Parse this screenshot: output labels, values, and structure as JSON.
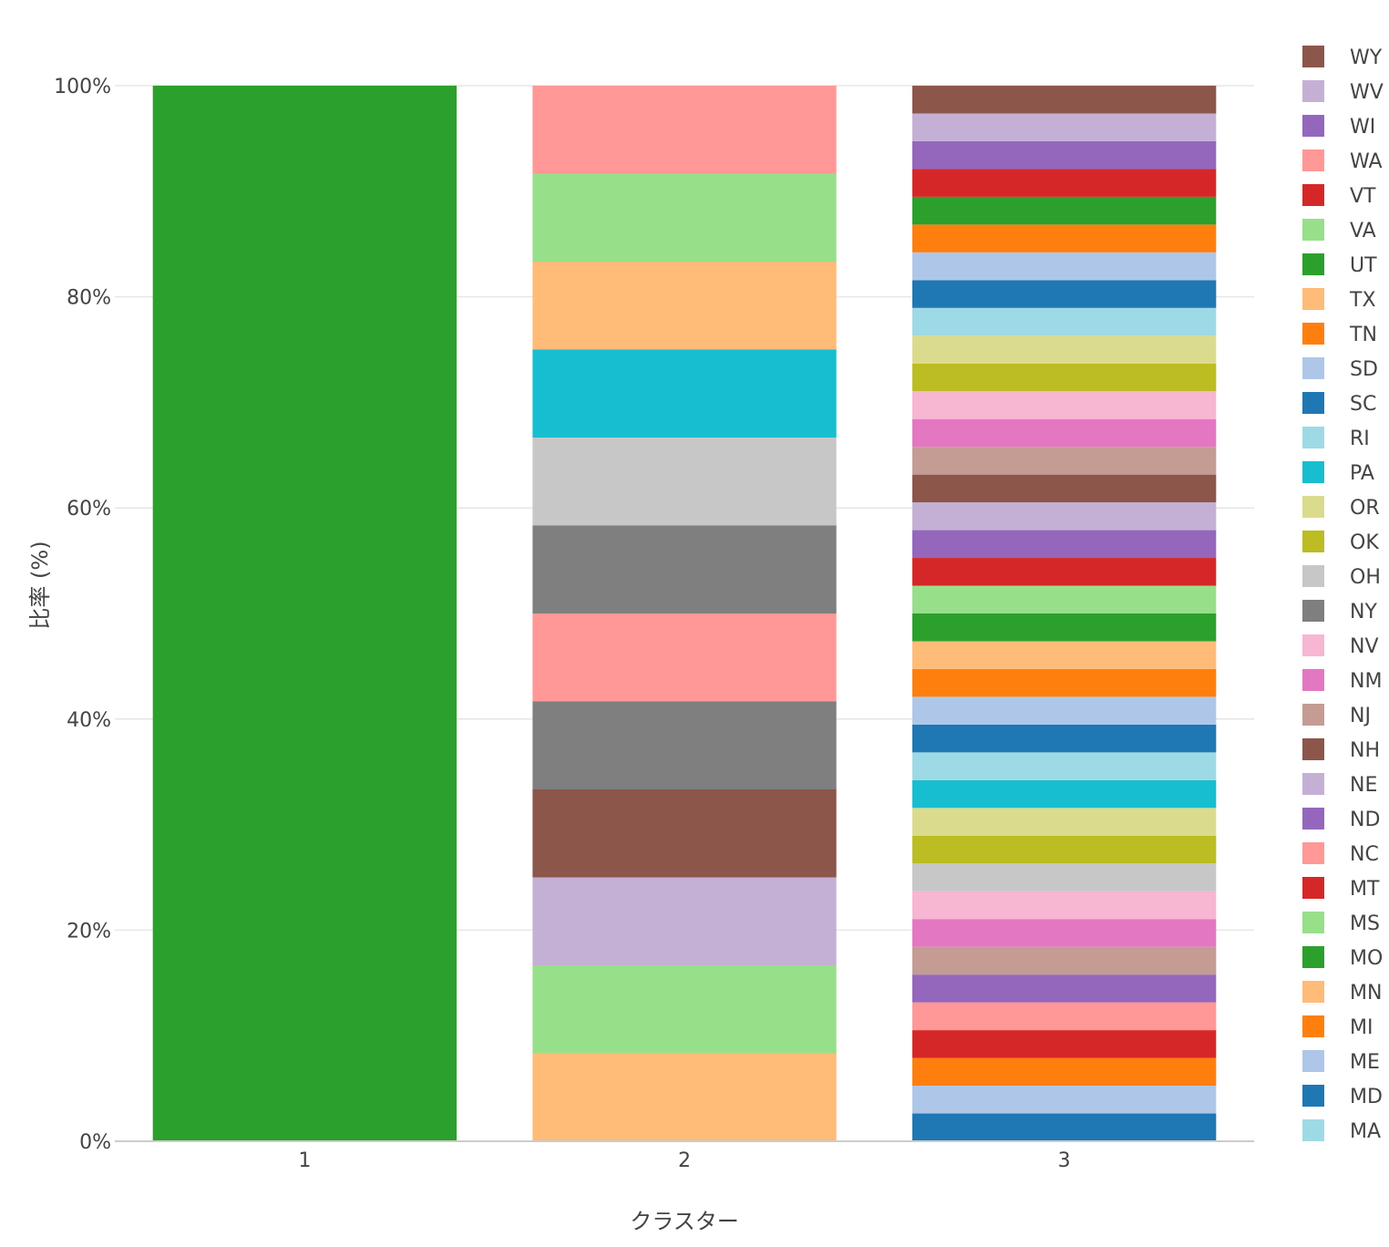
{
  "chart_data": {
    "type": "bar",
    "stacked": true,
    "title": "",
    "xlabel": "クラスター",
    "ylabel": "比率 (%)",
    "categories": [
      "1",
      "2",
      "3"
    ],
    "ylim": [
      0,
      100
    ],
    "y_ticks": [
      "0%",
      "20%",
      "40%",
      "60%",
      "80%",
      "100%"
    ],
    "grid": true,
    "legend_position": "right",
    "state_colors": {
      "MA": "#9edae5",
      "MD": "#1f77b4",
      "ME": "#aec7e8",
      "MI": "#ff7f0e",
      "MN": "#ffbb78",
      "MO": "#2ca02c",
      "MS": "#98df8a",
      "MT": "#d62728",
      "NC": "#ff9896",
      "ND": "#9467bd",
      "NE": "#c5b0d5",
      "NH": "#8c564b",
      "NJ": "#c49c94",
      "NM": "#e377c2",
      "NV": "#f7b6d2",
      "NY": "#7f7f7f",
      "OH": "#c7c7c7",
      "OK": "#bcbd22",
      "OR": "#dbdb8d",
      "PA": "#17becf",
      "RI": "#9edae5",
      "SC": "#1f77b4",
      "SD": "#aec7e8",
      "TN": "#ff7f0e",
      "TX": "#ffbb78",
      "UT": "#2ca02c",
      "VA": "#98df8a",
      "VT": "#d62728",
      "WA": "#ff9896",
      "WI": "#9467bd",
      "WV": "#c5b0d5",
      "WY": "#8c564b"
    },
    "legend": [
      "WY",
      "WV",
      "WI",
      "WA",
      "VT",
      "VA",
      "UT",
      "TX",
      "TN",
      "SD",
      "SC",
      "RI",
      "PA",
      "OR",
      "OK",
      "OH",
      "NY",
      "NV",
      "NM",
      "NJ",
      "NH",
      "NE",
      "ND",
      "NC",
      "MT",
      "MS",
      "MO",
      "MN",
      "MI",
      "ME",
      "MD",
      "MA"
    ],
    "stacks": [
      {
        "category": "1",
        "segments": [
          {
            "state": "MO",
            "value": 100
          }
        ]
      },
      {
        "category": "2",
        "segments": [
          {
            "state": "MN",
            "value": 8.33
          },
          {
            "state": "MS",
            "value": 8.33
          },
          {
            "state": "NE",
            "value": 8.33
          },
          {
            "state": "NH",
            "value": 8.33
          },
          {
            "state": "NY",
            "value": 8.33
          },
          {
            "state": "NC",
            "value": 8.33
          },
          {
            "state": "NY",
            "value": 8.33
          },
          {
            "state": "OH",
            "value": 8.33
          },
          {
            "state": "PA",
            "value": 8.33
          },
          {
            "state": "TX",
            "value": 8.33
          },
          {
            "state": "VA",
            "value": 8.33
          },
          {
            "state": "WA",
            "value": 8.33
          }
        ]
      },
      {
        "category": "3",
        "segments": [
          {
            "state": "MD",
            "value": 2.63
          },
          {
            "state": "ME",
            "value": 2.63
          },
          {
            "state": "MI",
            "value": 2.63
          },
          {
            "state": "MT",
            "value": 2.63
          },
          {
            "state": "NC",
            "value": 2.63
          },
          {
            "state": "ND",
            "value": 2.63
          },
          {
            "state": "NJ",
            "value": 2.63
          },
          {
            "state": "NM",
            "value": 2.63
          },
          {
            "state": "NV",
            "value": 2.63
          },
          {
            "state": "OH",
            "value": 2.63
          },
          {
            "state": "OK",
            "value": 2.63
          },
          {
            "state": "OR",
            "value": 2.63
          },
          {
            "state": "PA",
            "value": 2.63
          },
          {
            "state": "RI",
            "value": 2.63
          },
          {
            "state": "SC",
            "value": 2.63
          },
          {
            "state": "SD",
            "value": 2.63
          },
          {
            "state": "TN",
            "value": 2.63
          },
          {
            "state": "TX",
            "value": 2.63
          },
          {
            "state": "UT",
            "value": 2.63
          },
          {
            "state": "VA",
            "value": 2.63
          },
          {
            "state": "VT",
            "value": 2.63
          },
          {
            "state": "WI",
            "value": 2.63
          },
          {
            "state": "WV",
            "value": 2.63
          },
          {
            "state": "WY",
            "value": 2.63
          },
          {
            "state": "NJ",
            "value": 2.63
          },
          {
            "state": "NM",
            "value": 2.63
          },
          {
            "state": "NV",
            "value": 2.63
          },
          {
            "state": "OK",
            "value": 2.63
          },
          {
            "state": "OR",
            "value": 2.63
          },
          {
            "state": "RI",
            "value": 2.63
          },
          {
            "state": "SC",
            "value": 2.63
          },
          {
            "state": "SD",
            "value": 2.63
          },
          {
            "state": "TN",
            "value": 2.63
          },
          {
            "state": "UT",
            "value": 2.63
          },
          {
            "state": "VT",
            "value": 2.63
          },
          {
            "state": "WI",
            "value": 2.63
          },
          {
            "state": "WV",
            "value": 2.63
          },
          {
            "state": "WY",
            "value": 2.63
          }
        ]
      }
    ]
  }
}
